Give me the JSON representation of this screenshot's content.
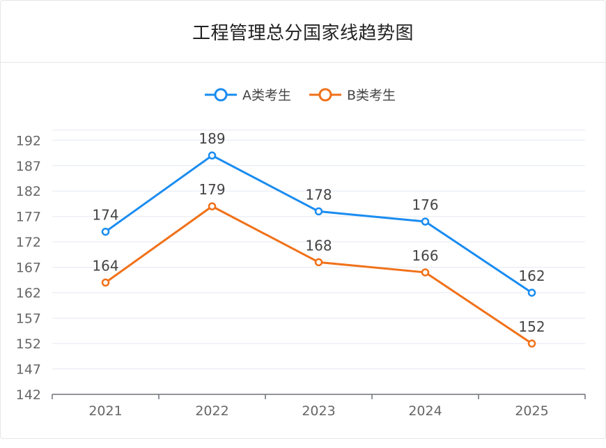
{
  "header": {
    "title": "工程管理总分国家线趋势图"
  },
  "chart_data": {
    "type": "line",
    "title": "工程管理总分国家线趋势图",
    "categories": [
      "2021",
      "2022",
      "2023",
      "2024",
      "2025"
    ],
    "series": [
      {
        "name": "A类考生",
        "values": [
          174,
          189,
          178,
          176,
          162
        ],
        "color": "#1a8cf0"
      },
      {
        "name": "B类考生",
        "values": [
          164,
          179,
          168,
          166,
          152
        ],
        "color": "#f07119"
      }
    ],
    "yticks": [
      "142",
      "147",
      "152",
      "157",
      "162",
      "167",
      "172",
      "177",
      "182",
      "187",
      "192"
    ],
    "ylim": [
      142,
      194
    ],
    "xlabel": "",
    "ylabel": "",
    "grid": true,
    "legend_position": "top-center",
    "data_labels": true,
    "colors": {
      "gridline": "#e4e8f2",
      "axis": "#6e7079"
    }
  }
}
